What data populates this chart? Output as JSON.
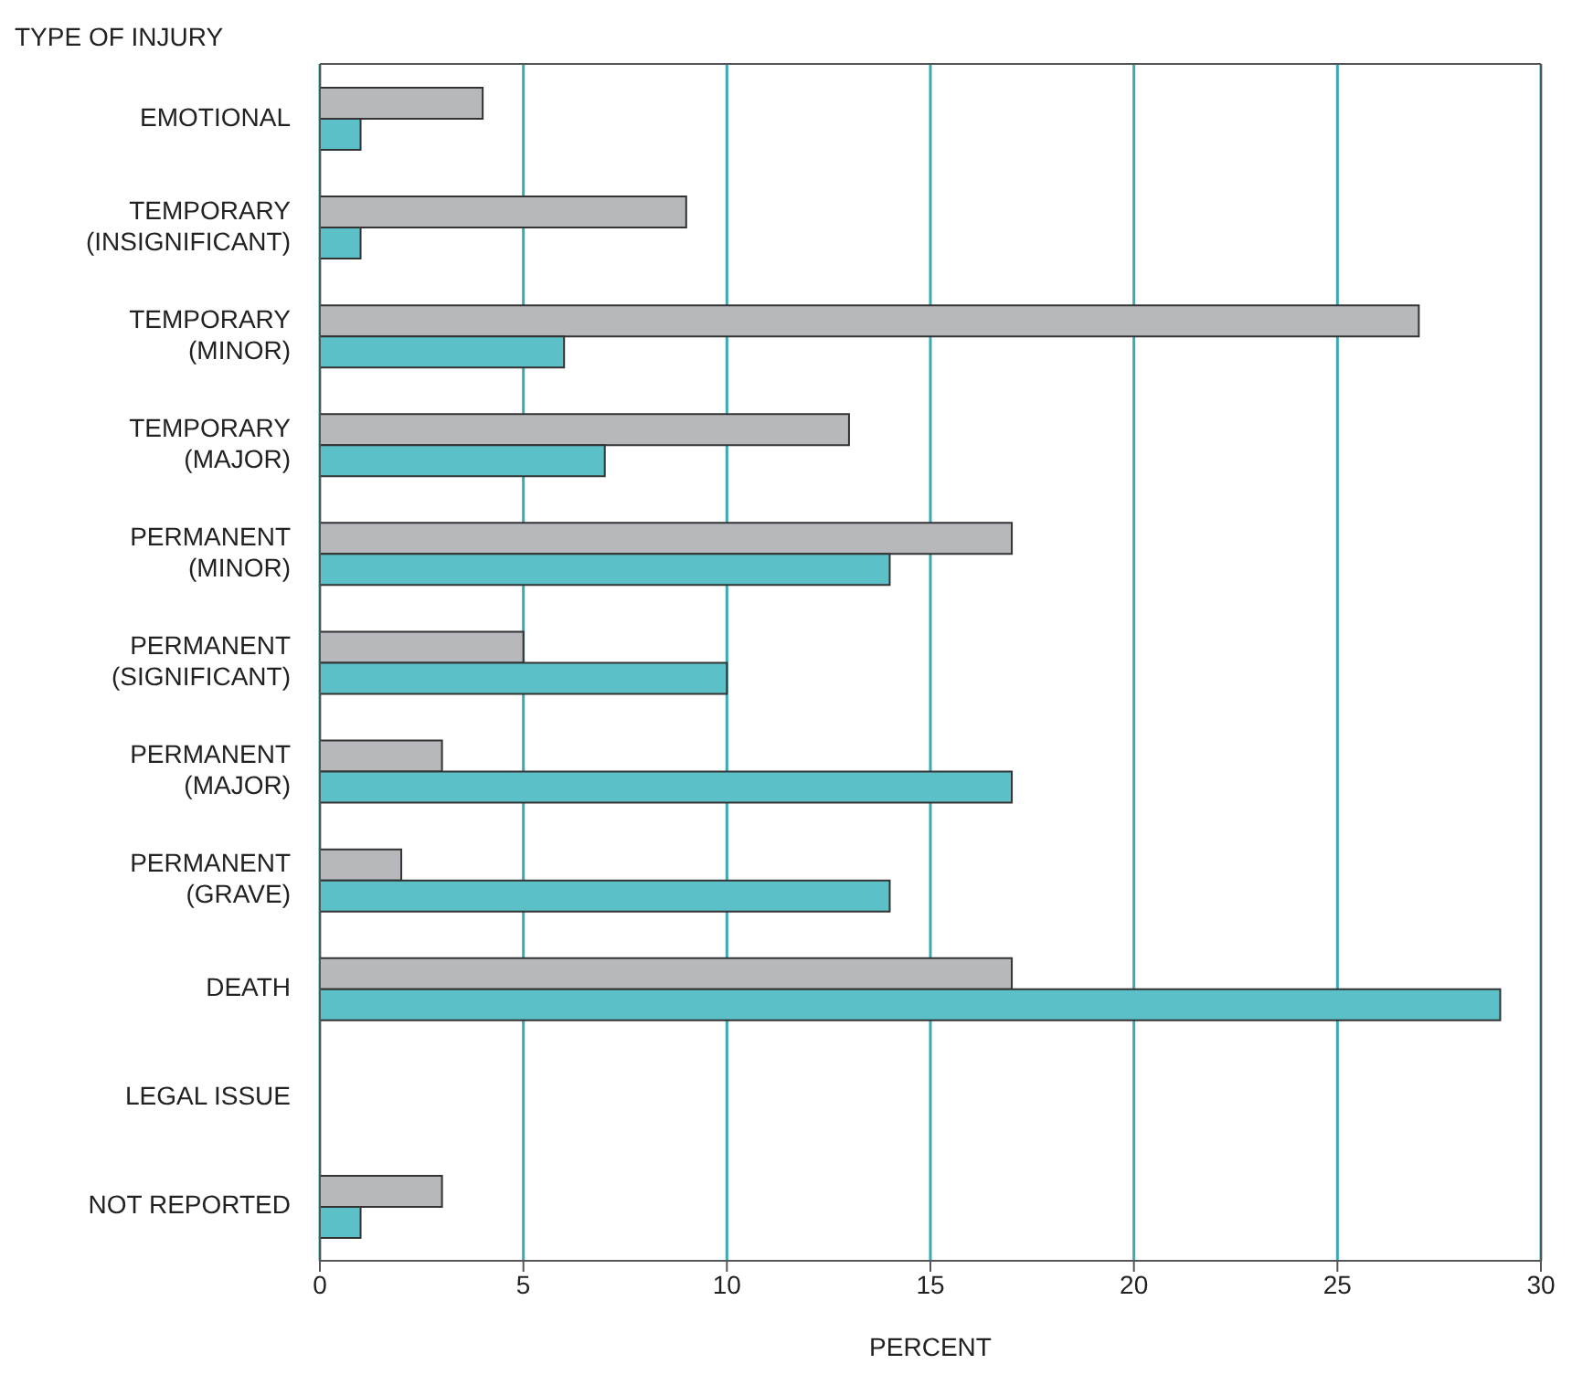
{
  "chart_data": {
    "type": "bar",
    "orientation": "horizontal",
    "ylabel": "TYPE OF INJURY",
    "xlabel": "PERCENT",
    "categories": [
      "EMOTIONAL",
      "TEMPORARY\n(INSIGNIFICANT)",
      "TEMPORARY\n(MINOR)",
      "TEMPORARY\n(MAJOR)",
      "PERMANENT\n(MINOR)",
      "PERMANENT\n(SIGNIFICANT)",
      "PERMANENT\n(MAJOR)",
      "PERMANENT\n(GRAVE)",
      "DEATH",
      "LEGAL ISSUE",
      "NOT REPORTED"
    ],
    "series": [
      {
        "color": "#b7b8bc",
        "values": [
          4,
          9,
          27,
          13,
          17,
          5,
          3,
          2,
          17,
          null,
          3
        ]
      },
      {
        "color": "#5cc0c9",
        "values": [
          1,
          1,
          6,
          7,
          14,
          10,
          17,
          14,
          29,
          null,
          1
        ]
      }
    ],
    "xlim": [
      0,
      30
    ],
    "xticks": [
      0,
      5,
      10,
      15,
      20,
      25,
      30
    ],
    "grid": "x",
    "legend": false
  }
}
